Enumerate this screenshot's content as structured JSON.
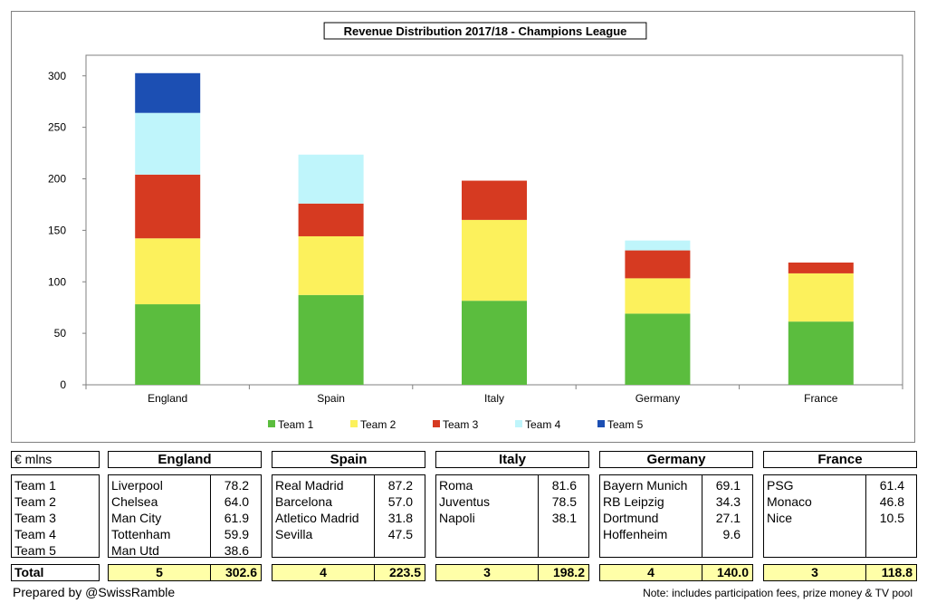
{
  "chart_data": {
    "type": "bar",
    "stacked": true,
    "title": "Revenue Distribution 2017/18 - Champions League",
    "categories": [
      "England",
      "Spain",
      "Italy",
      "Germany",
      "France"
    ],
    "series": [
      {
        "name": "Team 1",
        "color": "#5bbd3e",
        "values": [
          78.2,
          87.2,
          81.6,
          69.1,
          61.4
        ]
      },
      {
        "name": "Team 2",
        "color": "#fcf15c",
        "values": [
          64.0,
          57.0,
          78.5,
          34.3,
          46.8
        ]
      },
      {
        "name": "Team 3",
        "color": "#d63a21",
        "values": [
          61.9,
          31.8,
          38.1,
          27.1,
          10.5
        ]
      },
      {
        "name": "Team 4",
        "color": "#bff5fb",
        "values": [
          59.9,
          47.5,
          0,
          9.6,
          0
        ]
      },
      {
        "name": "Team 5",
        "color": "#1c4fb3",
        "values": [
          38.6,
          0,
          0,
          0,
          0
        ]
      }
    ],
    "ylim": [
      0,
      320
    ],
    "yticks": [
      0,
      50,
      100,
      150,
      200,
      250,
      300
    ],
    "xlabel": "",
    "ylabel": "",
    "legend_position": "bottom"
  },
  "table": {
    "unit_label": "€ mlns",
    "row_labels": [
      "Team 1",
      "Team 2",
      "Team 3",
      "Team 4",
      "Team 5"
    ],
    "total_label": "Total",
    "countries": [
      {
        "name": "England",
        "clubs": [
          [
            "Liverpool",
            "78.2"
          ],
          [
            "Chelsea",
            "64.0"
          ],
          [
            "Man City",
            "61.9"
          ],
          [
            "Tottenham",
            "59.9"
          ],
          [
            "Man Utd",
            "38.6"
          ]
        ],
        "count": "5",
        "total": "302.6"
      },
      {
        "name": "Spain",
        "clubs": [
          [
            "Real Madrid",
            "87.2"
          ],
          [
            "Barcelona",
            "57.0"
          ],
          [
            "Atletico Madrid",
            "31.8"
          ],
          [
            "Sevilla",
            "47.5"
          ]
        ],
        "count": "4",
        "total": "223.5"
      },
      {
        "name": "Italy",
        "clubs": [
          [
            "Roma",
            "81.6"
          ],
          [
            "Juventus",
            "78.5"
          ],
          [
            "Napoli",
            "38.1"
          ]
        ],
        "count": "3",
        "total": "198.2"
      },
      {
        "name": "Germany",
        "clubs": [
          [
            "Bayern Munich",
            "69.1"
          ],
          [
            "RB Leipzig",
            "34.3"
          ],
          [
            "Dortmund",
            "27.1"
          ],
          [
            "Hoffenheim",
            "9.6"
          ]
        ],
        "count": "4",
        "total": "140.0"
      },
      {
        "name": "France",
        "clubs": [
          [
            "PSG",
            "61.4"
          ],
          [
            "Monaco",
            "46.8"
          ],
          [
            "Nice",
            "10.5"
          ]
        ],
        "count": "3",
        "total": "118.8"
      }
    ]
  },
  "footer": {
    "credit": "Prepared by @SwissRamble",
    "note": "Note: includes participation fees, prize money & TV pool"
  }
}
